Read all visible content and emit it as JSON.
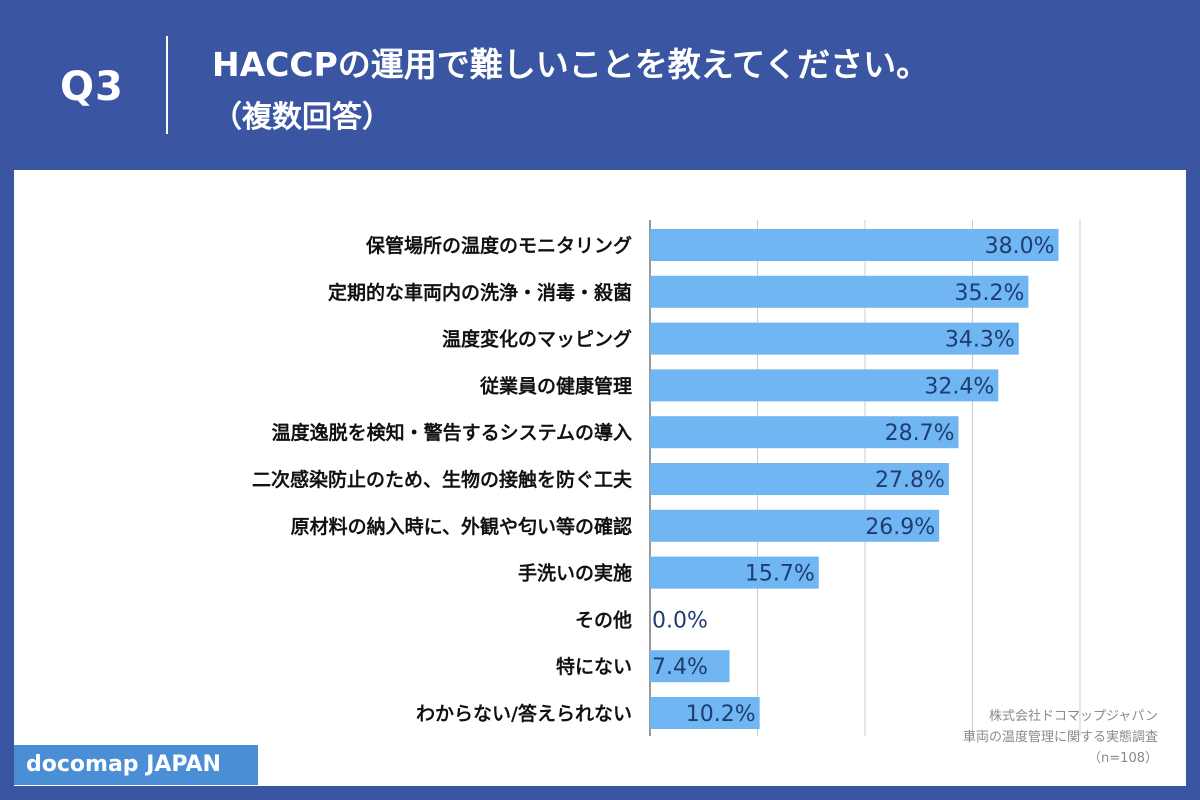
{
  "header": {
    "question_number": "Q3",
    "title_line1": "HACCPの運用で難しいことを教えてください。",
    "title_line2": "（複数回答）"
  },
  "colors": {
    "background": "#3a55a2",
    "panel": "#ffffff",
    "bar": "#6fb6f2",
    "value_text": "#1f3d70",
    "gridline": "#cccccc",
    "brand_badge": "#4a8fd6"
  },
  "chart_data": {
    "type": "bar",
    "orientation": "horizontal",
    "categories": [
      "保管場所の温度のモニタリング",
      "定期的な車両内の洗浄・消毒・殺菌",
      "温度変化のマッピング",
      "従業員の健康管理",
      "温度逸脱を検知・警告するシステムの導入",
      "二次感染防止のため、生物の接触を防ぐ工夫",
      "原材料の納入時に、外観や匂い等の確認",
      "手洗いの実施",
      "その他",
      "特にない",
      "わからない/答えられない"
    ],
    "values": [
      38.0,
      35.2,
      34.3,
      32.4,
      28.7,
      27.8,
      26.9,
      15.7,
      0.0,
      7.4,
      10.2
    ],
    "value_labels": [
      "38.0%",
      "35.2%",
      "34.3%",
      "32.4%",
      "28.7%",
      "27.8%",
      "26.9%",
      "15.7%",
      "0.0%",
      "7.4%",
      "10.2%"
    ],
    "xlim": [
      0,
      40
    ],
    "grid": true,
    "legend": "none"
  },
  "source": {
    "company": "株式会社ドコマップジャパン",
    "survey": "車両の温度管理に関する実態調査",
    "sample": "（n=108）"
  },
  "brand": {
    "name": "docomap JAPAN"
  }
}
